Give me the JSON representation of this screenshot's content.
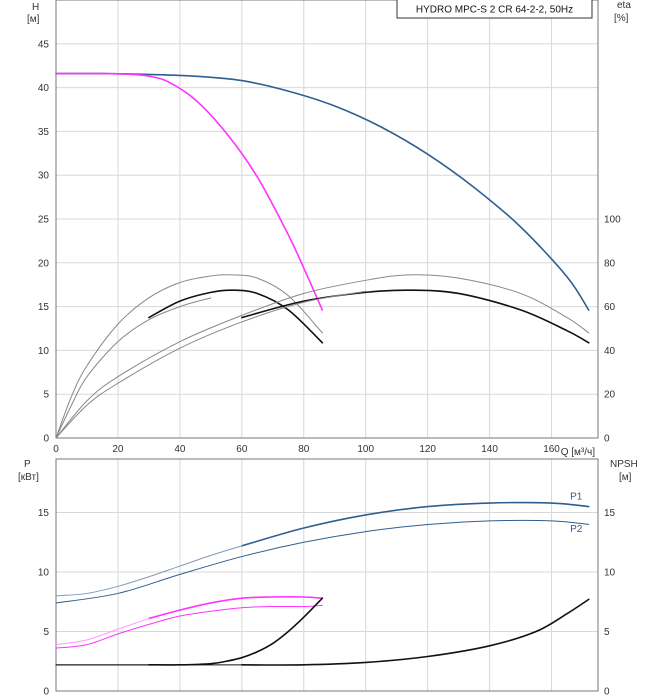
{
  "title": "HYDRO MPC-S 2 CR 64-2-2, 50Hz",
  "colors": {
    "blue": "#2f5f8f",
    "blue_light": "#7f9bb8",
    "magenta": "#ff33ff",
    "magenta_light": "#ff99ff",
    "black": "#111111",
    "gray": "#888888"
  },
  "chart_data": [
    {
      "type": "line",
      "id": "top",
      "xlabel": "Q [м³/ч]",
      "xlim": [
        0,
        175
      ],
      "xticks": [
        0,
        20,
        40,
        60,
        80,
        100,
        120,
        140,
        160
      ],
      "left_axis": {
        "label_line1": "H",
        "label_line2": "[м]",
        "ylim": [
          0,
          50
        ],
        "ticks": [
          0,
          5,
          10,
          15,
          20,
          25,
          30,
          35,
          40,
          45
        ]
      },
      "right_axis": {
        "label_line1": "eta",
        "label_line2": "[%]",
        "ylim": [
          0,
          200
        ],
        "ticks": [
          0,
          20,
          40,
          60,
          80,
          100
        ]
      },
      "series": [
        {
          "axis": "left",
          "color": "#2f5f8f",
          "width": 1.6,
          "x": [
            0,
            15,
            30,
            45,
            60,
            75,
            90,
            105,
            120,
            135,
            150,
            165,
            172
          ],
          "y": [
            41.6,
            41.6,
            41.5,
            41.3,
            40.8,
            39.6,
            37.9,
            35.5,
            32.4,
            28.6,
            24.1,
            18.4,
            14.6
          ]
        },
        {
          "axis": "left",
          "color": "#ff33ff",
          "width": 1.6,
          "x": [
            0,
            15,
            25,
            30,
            36,
            45,
            55,
            65,
            75,
            80,
            86
          ],
          "y": [
            41.6,
            41.6,
            41.5,
            41.3,
            40.7,
            38.6,
            34.8,
            29.8,
            23.2,
            19.4,
            14.6
          ]
        },
        {
          "axis": "right",
          "color": "#111111",
          "width": 1.6,
          "x": [
            30,
            40,
            50,
            57,
            65,
            75,
            86
          ],
          "y": [
            55,
            62.5,
            66.5,
            67.5,
            66.0,
            58.5,
            43.5
          ]
        },
        {
          "axis": "right",
          "color": "#888888",
          "width": 1,
          "x": [
            0,
            5,
            10,
            20,
            30,
            40,
            50,
            57,
            65,
            75,
            86
          ],
          "y": [
            0,
            19,
            33,
            52,
            64,
            71,
            74,
            74.5,
            73,
            65,
            48
          ]
        },
        {
          "axis": "right",
          "color": "#888888",
          "width": 1,
          "x": [
            0,
            5,
            10,
            20,
            30,
            40,
            50
          ],
          "y": [
            0,
            15,
            28,
            44,
            54,
            60,
            64
          ]
        },
        {
          "axis": "right",
          "color": "#111111",
          "width": 1.6,
          "x": [
            60,
            80,
            100,
            114,
            130,
            150,
            165,
            172
          ],
          "y": [
            55,
            62.5,
            66.5,
            67.5,
            66.0,
            58.5,
            49,
            43.5
          ]
        },
        {
          "axis": "right",
          "color": "#888888",
          "width": 1,
          "x": [
            0,
            10,
            20,
            40,
            60,
            80,
            100,
            114,
            130,
            150,
            165,
            172
          ],
          "y": [
            0,
            17,
            28,
            44,
            56,
            66,
            72,
            74.5,
            73,
            66,
            55,
            48
          ]
        },
        {
          "axis": "right",
          "color": "#888888",
          "width": 1,
          "x": [
            0,
            10,
            20,
            40,
            60,
            80,
            100
          ],
          "y": [
            0,
            15,
            25,
            41,
            53,
            62,
            67
          ]
        }
      ]
    },
    {
      "type": "line",
      "id": "bottom",
      "xlim": [
        0,
        175
      ],
      "left_axis": {
        "label_line1": "P",
        "label_line2": "[кВт]",
        "ylim": [
          0,
          19.5
        ],
        "ticks": [
          0,
          5,
          10,
          15
        ]
      },
      "right_axis": {
        "label_line1": "NPSH",
        "label_line2": "[м]",
        "ylim": [
          0,
          19.5
        ],
        "ticks": [
          0,
          5,
          10,
          15
        ]
      },
      "series_labels": [
        {
          "text": "P1",
          "x": 166,
          "y": 16.0,
          "color": "#2f5f8f"
        },
        {
          "text": "P2",
          "x": 166,
          "y": 13.3,
          "color": "#2f5f8f"
        }
      ],
      "series": [
        {
          "axis": "left",
          "color": "#2f5f8f",
          "width": 1.6,
          "x": [
            60,
            80,
            100,
            120,
            140,
            160,
            172
          ],
          "y": [
            12.2,
            13.7,
            14.8,
            15.5,
            15.8,
            15.8,
            15.5
          ]
        },
        {
          "axis": "left",
          "color": "#7f9bb8",
          "width": 1,
          "x": [
            0,
            10,
            20,
            30,
            40,
            50,
            60
          ],
          "y": [
            8.0,
            8.2,
            8.8,
            9.6,
            10.5,
            11.4,
            12.2
          ]
        },
        {
          "axis": "left",
          "color": "#2f5f8f",
          "width": 1,
          "x": [
            0,
            20,
            40,
            60,
            80,
            100,
            120,
            140,
            160,
            172
          ],
          "y": [
            7.4,
            8.2,
            9.8,
            11.3,
            12.5,
            13.4,
            14.0,
            14.3,
            14.3,
            14.0
          ]
        },
        {
          "axis": "left",
          "color": "#ff33ff",
          "width": 1.6,
          "x": [
            30,
            40,
            50,
            60,
            70,
            80,
            86
          ],
          "y": [
            6.1,
            6.8,
            7.4,
            7.8,
            7.9,
            7.9,
            7.8
          ]
        },
        {
          "axis": "left",
          "color": "#ff99ff",
          "width": 1,
          "x": [
            0,
            10,
            20,
            30
          ],
          "y": [
            3.9,
            4.3,
            5.2,
            6.1
          ]
        },
        {
          "axis": "left",
          "color": "#ff33ff",
          "width": 1,
          "x": [
            0,
            10,
            20,
            30,
            40,
            50,
            60,
            70,
            80,
            86
          ],
          "y": [
            3.6,
            3.9,
            4.8,
            5.6,
            6.3,
            6.7,
            7.0,
            7.1,
            7.1,
            7.2
          ]
        },
        {
          "axis": "right",
          "color": "#111111",
          "width": 1.6,
          "x": [
            30,
            40,
            50,
            55,
            60,
            65,
            70,
            75,
            80,
            86
          ],
          "y": [
            2.2,
            2.2,
            2.3,
            2.5,
            2.8,
            3.3,
            4.0,
            5.0,
            6.2,
            7.8
          ]
        },
        {
          "axis": "right",
          "color": "#111111",
          "width": 1,
          "x": [
            0,
            10,
            20,
            30
          ],
          "y": [
            2.2,
            2.2,
            2.2,
            2.2
          ]
        },
        {
          "axis": "right",
          "color": "#111111",
          "width": 1.6,
          "x": [
            60,
            80,
            100,
            120,
            140,
            155,
            165,
            172
          ],
          "y": [
            2.2,
            2.2,
            2.4,
            2.9,
            3.8,
            5.0,
            6.5,
            7.7
          ]
        },
        {
          "axis": "right",
          "color": "#111111",
          "width": 1,
          "x": [
            0,
            20,
            40,
            60
          ],
          "y": [
            2.2,
            2.2,
            2.2,
            2.2
          ]
        }
      ]
    }
  ]
}
